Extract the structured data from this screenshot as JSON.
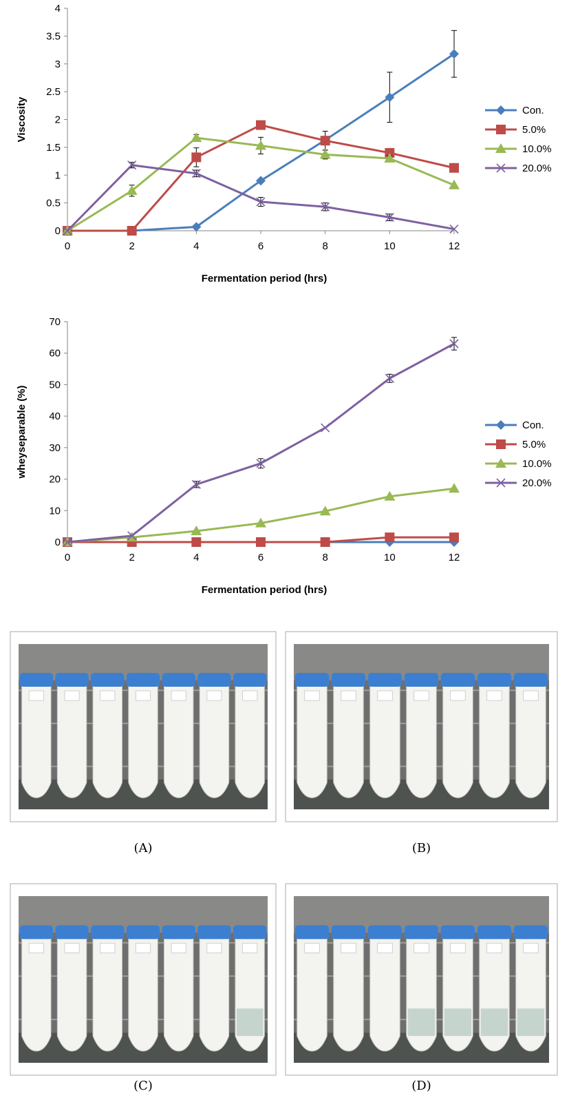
{
  "colors": {
    "con": "#4a7ebb",
    "p5": "#be4b48",
    "p10": "#98b954",
    "p20": "#7d60a0",
    "cap": "#3c7fd0",
    "tube": "#f3f3ef",
    "photo_bg": "#6e6e6e"
  },
  "chart_data": [
    {
      "type": "line",
      "ylabel": "Viscosity",
      "xlabel": "Fermentation period (hrs)",
      "x": [
        0,
        2,
        4,
        6,
        8,
        10,
        12
      ],
      "xlim": [
        0,
        12
      ],
      "ylim": [
        0,
        4
      ],
      "yticks": [
        "0",
        "0.5",
        "1",
        "1.5",
        "2",
        "2.5",
        "3",
        "3.5",
        "4"
      ],
      "xticks": [
        "0",
        "2",
        "4",
        "6",
        "8",
        "10",
        "12"
      ],
      "grid": false,
      "legend": "right",
      "series": [
        {
          "name": "Con.",
          "marker": "diamond",
          "values": [
            0,
            0,
            0.07,
            0.9,
            1.63,
            2.4,
            3.18
          ],
          "errors": [
            0,
            0,
            0,
            0,
            0.05,
            0.45,
            0.42
          ]
        },
        {
          "name": "5.0%",
          "marker": "square",
          "values": [
            0,
            0,
            1.32,
            1.9,
            1.62,
            1.4,
            1.13
          ],
          "errors": [
            0,
            0,
            0.17,
            0,
            0.17,
            0,
            0
          ]
        },
        {
          "name": "10.0%",
          "marker": "triangle",
          "values": [
            0,
            0.72,
            1.67,
            1.53,
            1.37,
            1.3,
            0.82
          ],
          "errors": [
            0,
            0.1,
            0.06,
            0.15,
            0.08,
            0.05,
            0
          ]
        },
        {
          "name": "20.0%",
          "marker": "x",
          "values": [
            0,
            1.18,
            1.03,
            0.52,
            0.43,
            0.24,
            0.03
          ],
          "errors": [
            0,
            0.05,
            0.06,
            0.08,
            0.07,
            0.06,
            0
          ]
        }
      ]
    },
    {
      "type": "line",
      "ylabel": "wheyseparable (%)",
      "xlabel": "Fermentation period (hrs)",
      "x": [
        0,
        2,
        4,
        6,
        8,
        10,
        12
      ],
      "xlim": [
        0,
        12
      ],
      "ylim": [
        0,
        70
      ],
      "yticks": [
        "0",
        "10",
        "20",
        "30",
        "40",
        "50",
        "60",
        "70"
      ],
      "xticks": [
        "0",
        "2",
        "4",
        "6",
        "8",
        "10",
        "12"
      ],
      "grid": false,
      "legend": "right",
      "series": [
        {
          "name": "Con.",
          "marker": "diamond",
          "values": [
            0,
            0,
            0,
            0,
            0,
            0,
            0
          ],
          "errors": [
            0,
            0,
            0,
            0,
            0,
            0,
            0
          ]
        },
        {
          "name": "5.0%",
          "marker": "square",
          "values": [
            0,
            0,
            0,
            0,
            0,
            1.5,
            1.5
          ],
          "errors": [
            0,
            0,
            0,
            0,
            0,
            0,
            0
          ]
        },
        {
          "name": "10.0%",
          "marker": "triangle",
          "values": [
            0,
            1.5,
            3.5,
            6,
            9.8,
            14.5,
            17
          ],
          "errors": [
            0,
            0,
            0,
            0,
            0,
            0,
            0
          ]
        },
        {
          "name": "20.0%",
          "marker": "x",
          "values": [
            0,
            2,
            18.3,
            25,
            36.3,
            52,
            63
          ],
          "errors": [
            0,
            0,
            1,
            1.5,
            0,
            1.3,
            2
          ]
        }
      ]
    }
  ],
  "photos": [
    {
      "caption": "(A)",
      "tubes": 7,
      "whey_level": 0
    },
    {
      "caption": "(B)",
      "tubes": 7,
      "whey_level": 0
    },
    {
      "caption": "(C)",
      "tubes": 7,
      "whey_level": 0.15
    },
    {
      "caption": "(D)",
      "tubes": 7,
      "whey_level": 0.6
    }
  ]
}
